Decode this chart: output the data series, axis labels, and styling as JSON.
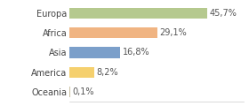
{
  "categories": [
    "Europa",
    "Africa",
    "Asia",
    "America",
    "Oceania"
  ],
  "values": [
    45.7,
    29.1,
    16.8,
    8.2,
    0.1
  ],
  "labels": [
    "45,7%",
    "29,1%",
    "16,8%",
    "8,2%",
    "0,1%"
  ],
  "bar_colors": [
    "#b5c98e",
    "#f0b482",
    "#7b9fca",
    "#f5d06e",
    "#c8bfa0"
  ],
  "background_color": "#ffffff",
  "xlim": [
    0,
    58
  ],
  "label_fontsize": 7.0,
  "tick_fontsize": 7.0,
  "bar_height": 0.55
}
